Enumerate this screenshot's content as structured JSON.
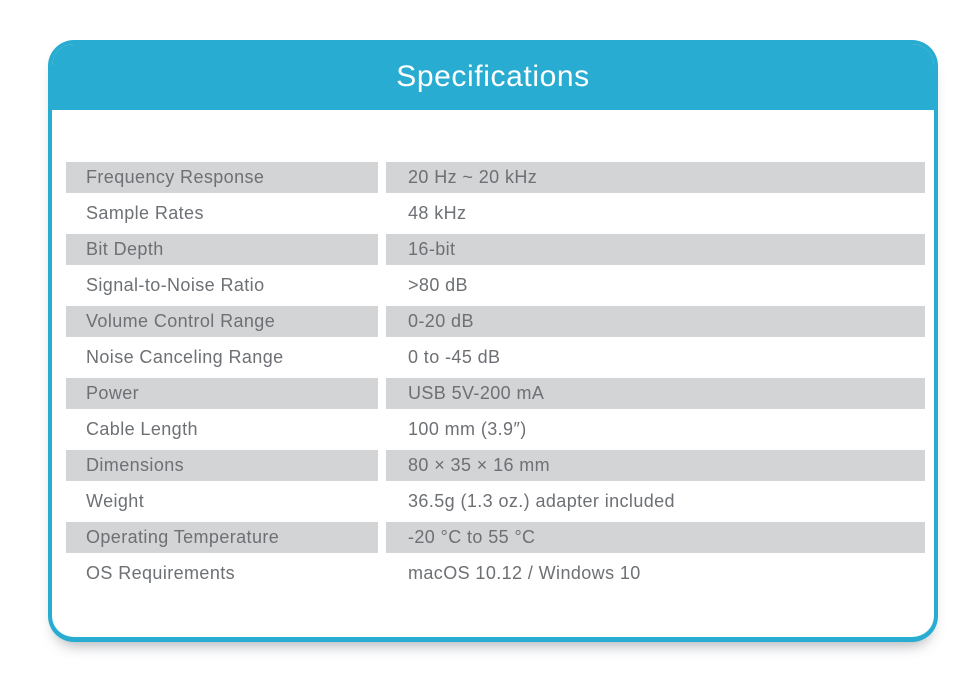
{
  "card": {
    "title": "Specifications"
  },
  "colors": {
    "accent": "#29acd1",
    "row_stripe": "#d2d4d5",
    "text": "#6d7074",
    "title_text": "#ffffff"
  },
  "table": {
    "rows": [
      {
        "label": "Frequency Response",
        "value": "20 Hz ~ 20 kHz"
      },
      {
        "label": "Sample Rates",
        "value": "48 kHz"
      },
      {
        "label": "Bit Depth",
        "value": "16-bit"
      },
      {
        "label": "Signal-to-Noise Ratio",
        "value": ">80 dB"
      },
      {
        "label": "Volume Control Range",
        "value": "0-20 dB"
      },
      {
        "label": "Noise Canceling Range",
        "value": "0 to -45 dB"
      },
      {
        "label": "Power",
        "value": "USB 5V-200 mA"
      },
      {
        "label": "Cable Length",
        "value": "100 mm (3.9″)"
      },
      {
        "label": "Dimensions",
        "value": "80 × 35 × 16 mm"
      },
      {
        "label": "Weight",
        "value": "36.5g (1.3 oz.) adapter included"
      },
      {
        "label": "Operating Temperature",
        "value": "-20 °C to 55 °C"
      },
      {
        "label": "OS Requirements",
        "value": "macOS 10.12 / Windows 10"
      }
    ]
  }
}
